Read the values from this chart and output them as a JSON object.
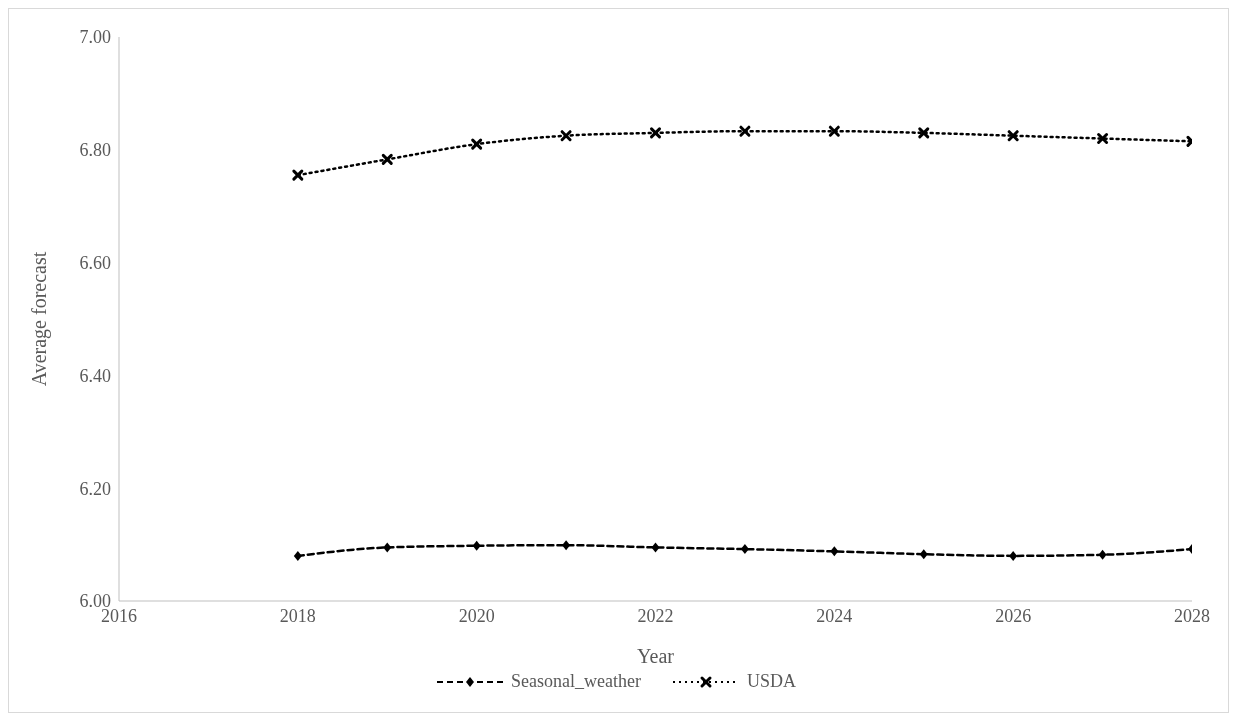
{
  "chart_data": {
    "type": "line",
    "xlabel": "Year",
    "ylabel": "Average forecast",
    "x": [
      2018,
      2019,
      2020,
      2021,
      2022,
      2023,
      2024,
      2025,
      2026,
      2027,
      2028
    ],
    "series": [
      {
        "name": "Seasonal_weather",
        "color": "#000000",
        "marker": "diamond",
        "line_style": "dashed",
        "values": [
          6.08,
          6.095,
          6.098,
          6.099,
          6.095,
          6.092,
          6.088,
          6.083,
          6.08,
          6.082,
          6.092
        ]
      },
      {
        "name": "USDA",
        "color": "#000000",
        "marker": "cross",
        "line_style": "dotted",
        "values": [
          6.755,
          6.783,
          6.81,
          6.825,
          6.83,
          6.833,
          6.833,
          6.83,
          6.825,
          6.82,
          6.815
        ]
      }
    ],
    "xlim": [
      2016,
      2028
    ],
    "xticks": [
      2016,
      2018,
      2020,
      2022,
      2024,
      2026,
      2028
    ],
    "ylim": [
      6,
      7
    ],
    "yticks": [
      {
        "value": 6,
        "label": "6.00"
      },
      {
        "value": 6.2,
        "label": "6.20"
      },
      {
        "value": 6.4,
        "label": "6.40"
      },
      {
        "value": 6.6,
        "label": "6.60"
      },
      {
        "value": 6.8,
        "label": "6.80"
      },
      {
        "value": 7,
        "label": "7.00"
      }
    ],
    "grid": false,
    "legend": "bottom"
  }
}
